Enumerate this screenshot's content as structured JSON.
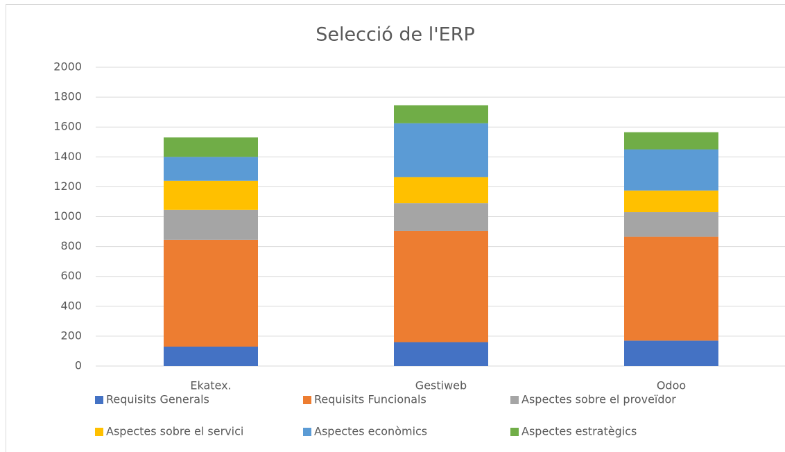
{
  "chart_data": {
    "type": "bar",
    "stacked": true,
    "title": "Selecció de l'ERP",
    "categories": [
      "Ekatex.",
      "Gestiweb",
      "Odoo"
    ],
    "series": [
      {
        "name": "Requisits Generals",
        "color": "#4472c4",
        "values": [
          130,
          160,
          170
        ]
      },
      {
        "name": "Requisits Funcionals",
        "color": "#ed7d31",
        "values": [
          715,
          745,
          695
        ]
      },
      {
        "name": "Aspectes sobre el proveïdor",
        "color": "#a5a5a5",
        "values": [
          200,
          185,
          165
        ]
      },
      {
        "name": "Aspectes sobre el servici",
        "color": "#ffc000",
        "values": [
          195,
          175,
          145
        ]
      },
      {
        "name": "Aspectes econòmics",
        "color": "#5b9bd5",
        "values": [
          160,
          360,
          275
        ]
      },
      {
        "name": "Aspectes estratègics",
        "color": "#70ad47",
        "values": [
          130,
          120,
          115
        ]
      }
    ],
    "ylim": [
      0,
      2000
    ],
    "yticks": [
      0,
      200,
      400,
      600,
      800,
      1000,
      1200,
      1400,
      1600,
      1800,
      2000
    ],
    "grid": true,
    "legend": "bottom"
  }
}
